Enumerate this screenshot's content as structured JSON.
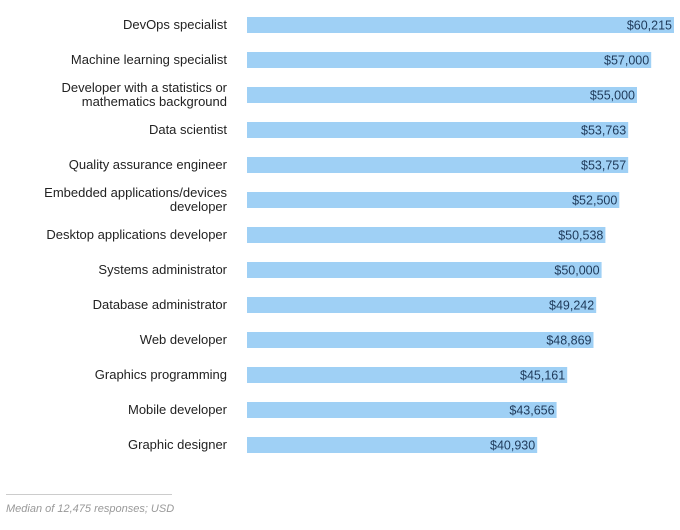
{
  "chart_data": {
    "type": "bar",
    "orientation": "horizontal",
    "categories": [
      [
        "DevOps specialist"
      ],
      [
        "Machine learning specialist"
      ],
      [
        "Developer with a statistics or",
        "mathematics background"
      ],
      [
        "Data scientist"
      ],
      [
        "Quality assurance engineer"
      ],
      [
        "Embedded applications/devices",
        "developer"
      ],
      [
        "Desktop applications developer"
      ],
      [
        "Systems administrator"
      ],
      [
        "Database administrator"
      ],
      [
        "Web developer"
      ],
      [
        "Graphics programming"
      ],
      [
        "Mobile developer"
      ],
      [
        "Graphic designer"
      ]
    ],
    "values": [
      60215,
      57000,
      55000,
      53763,
      53757,
      52500,
      50538,
      50000,
      49242,
      48869,
      45161,
      43656,
      40930
    ],
    "value_labels": [
      "$60,215",
      "$57,000",
      "$55,000",
      "$53,763",
      "$53,757",
      "$52,500",
      "$50,538",
      "$50,000",
      "$49,242",
      "$48,869",
      "$45,161",
      "$43,656",
      "$40,930"
    ],
    "colors": {
      "bar": "#9fd0f5",
      "value_text": "#1f3a5a"
    },
    "xlim": [
      0,
      60215
    ],
    "grid": false,
    "legend": "none"
  },
  "footnote": "Median of 12,475 responses; USD"
}
